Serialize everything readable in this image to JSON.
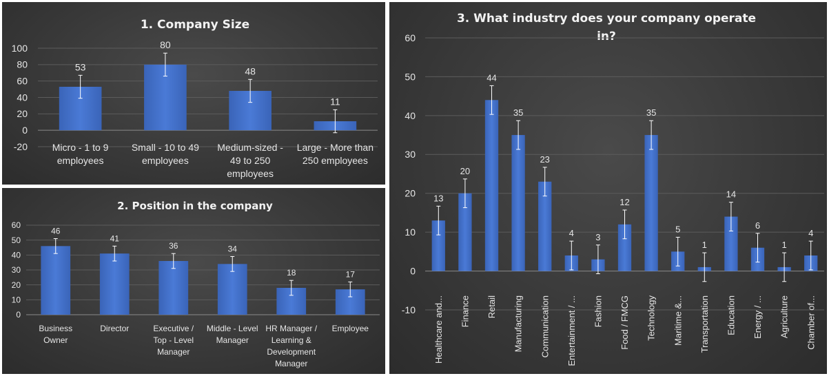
{
  "colors": {
    "bar": "#4472C4",
    "background": "#3a3a3a",
    "text": "#e6e6e6"
  },
  "chart_data": [
    {
      "type": "bar",
      "title": "1. Company Size",
      "categories": [
        [
          "Micro - 1 to 9",
          "employees"
        ],
        [
          "Small - 10 to 49",
          "employees"
        ],
        [
          "Medium-sized -",
          "49 to 250",
          "employees"
        ],
        [
          "Large - More than",
          "250 employees"
        ]
      ],
      "values": [
        53,
        80,
        48,
        11
      ],
      "error": [
        14,
        14,
        14,
        14
      ],
      "ylim": [
        -20,
        100
      ],
      "yticks": [
        -20,
        0,
        20,
        40,
        60,
        80,
        100
      ],
      "grid": true,
      "legend": "none"
    },
    {
      "type": "bar",
      "title": "2. Position in the company",
      "categories": [
        [
          "Business",
          "Owner"
        ],
        [
          "Director"
        ],
        [
          "Executive /",
          "Top - Level",
          "Manager"
        ],
        [
          "Middle - Level",
          "Manager"
        ],
        [
          "HR Manager /",
          "Learning &",
          "Development",
          "Manager"
        ],
        [
          "Employee"
        ]
      ],
      "values": [
        46,
        41,
        36,
        34,
        18,
        17
      ],
      "error": [
        5,
        5,
        5,
        5,
        5,
        5
      ],
      "ylim": [
        0,
        60
      ],
      "yticks": [
        0,
        10,
        20,
        30,
        40,
        50,
        60
      ],
      "grid": true,
      "legend": "none"
    },
    {
      "type": "bar",
      "title": "3. What industry does your company operate in?",
      "categories": [
        "Healthcare and...",
        "Finance",
        "Retail",
        "Manufacturing",
        "Communication",
        "Entertainment / ...",
        "Fashion",
        "Food / FMCG",
        "Technology",
        "Maritime &...",
        "Transportation",
        "Education",
        "Energy / ...",
        "Agriculture",
        "Chamber of..."
      ],
      "values": [
        13,
        20,
        44,
        35,
        23,
        4,
        3,
        12,
        35,
        5,
        1,
        14,
        6,
        1,
        4
      ],
      "error": [
        3.7,
        3.7,
        3.7,
        3.7,
        3.7,
        3.7,
        3.7,
        3.7,
        3.7,
        3.7,
        3.7,
        3.7,
        3.7,
        3.7,
        3.7
      ],
      "ylim": [
        -10,
        60
      ],
      "yticks": [
        -10,
        0,
        10,
        20,
        30,
        40,
        50,
        60
      ],
      "grid": true,
      "legend": "none"
    }
  ]
}
